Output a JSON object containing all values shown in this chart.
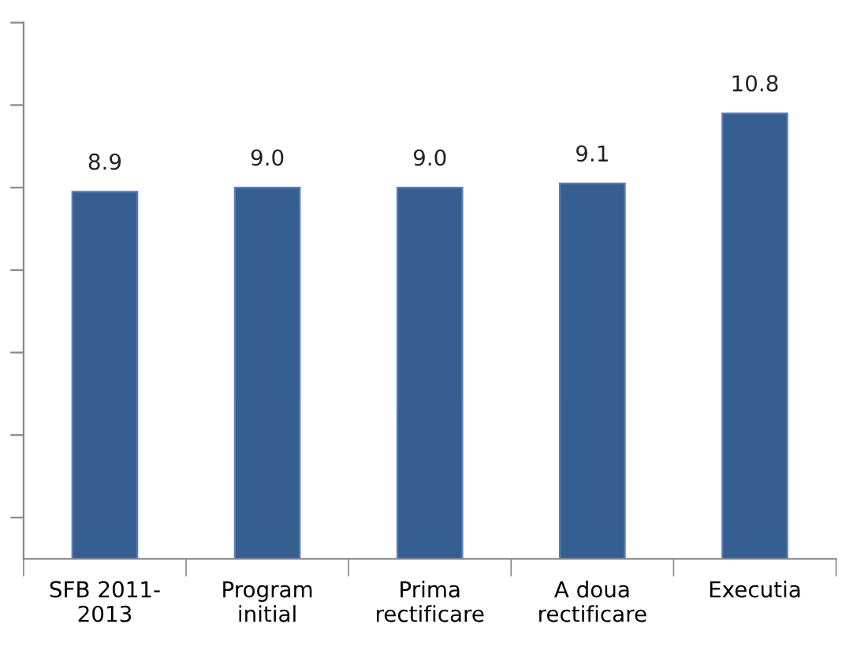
{
  "chart_data": {
    "type": "bar",
    "categories": [
      "SFB 2011-\n2013",
      "Program\ninitial",
      "Prima\nrectificare",
      "A doua\nrectificare",
      "Executia"
    ],
    "values": [
      8.9,
      9.0,
      9.0,
      9.1,
      10.8
    ],
    "color": "#365f91",
    "ylim": [
      0,
      13
    ],
    "yticks": [
      {
        "value": 1,
        "label": null
      },
      {
        "value": 3,
        "label": null
      },
      {
        "value": 5,
        "label": null
      },
      {
        "value": 7,
        "label": null
      },
      {
        "value": 9,
        "label": null
      },
      {
        "value": 11,
        "label": null
      },
      {
        "value": 13,
        "label": null
      }
    ],
    "tick_labels": "x",
    "value_labels": [
      "8.9",
      "9.0",
      "9.0",
      "9.1",
      "10.8"
    ],
    "grid": false,
    "legend": false
  }
}
